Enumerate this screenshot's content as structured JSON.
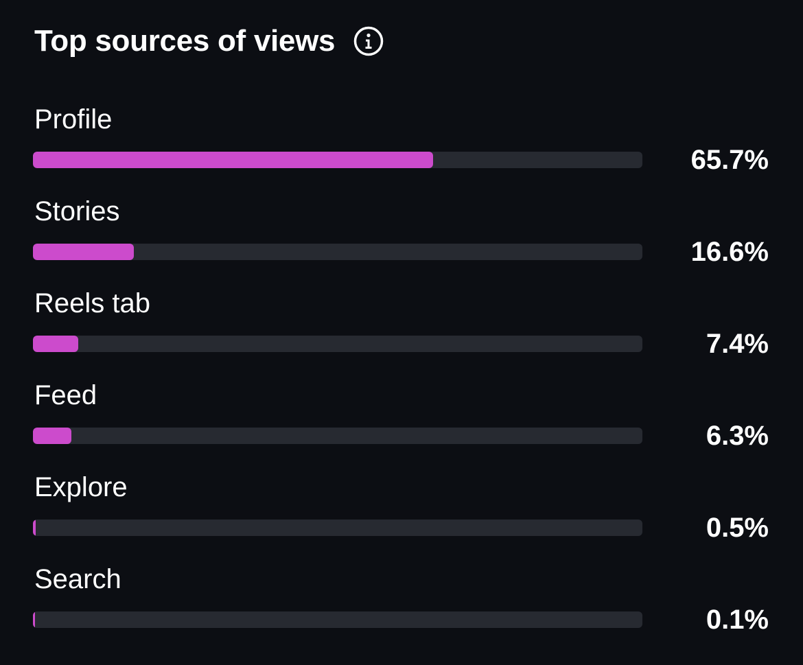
{
  "header": {
    "title": "Top sources of views",
    "info_icon": "info-circle-icon"
  },
  "colors": {
    "background": "#0c0e13",
    "bar_track": "#272a31",
    "bar_fill": "#cc4bcc",
    "text": "#ffffff"
  },
  "sources": [
    {
      "label": "Profile",
      "percent_text": "65.7%",
      "value": 65.7
    },
    {
      "label": "Stories",
      "percent_text": "16.6%",
      "value": 16.6
    },
    {
      "label": "Reels tab",
      "percent_text": "7.4%",
      "value": 7.4
    },
    {
      "label": "Feed",
      "percent_text": "6.3%",
      "value": 6.3
    },
    {
      "label": "Explore",
      "percent_text": "0.5%",
      "value": 0.5
    },
    {
      "label": "Search",
      "percent_text": "0.1%",
      "value": 0.1
    }
  ]
}
